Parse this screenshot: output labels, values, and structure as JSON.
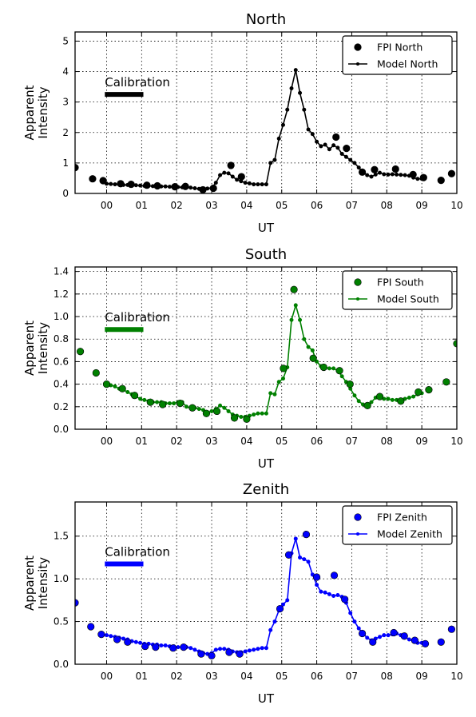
{
  "chart_data": [
    {
      "type": "line",
      "title": "North",
      "xlabel": "UT",
      "ylabel": [
        "Apparent",
        "Intensity"
      ],
      "xlim": [
        -0.9,
        10
      ],
      "ylim": [
        0,
        5.3
      ],
      "xticks": [
        0,
        1,
        2,
        3,
        4,
        5,
        6,
        7,
        8,
        9,
        10
      ],
      "xtick_labels": [
        "00",
        "01",
        "02",
        "03",
        "04",
        "05",
        "06",
        "07",
        "08",
        "09",
        "10"
      ],
      "yticks": [
        0,
        1,
        2,
        3,
        4,
        5
      ],
      "ytick_labels": [
        "0",
        "1",
        "2",
        "3",
        "4",
        "5"
      ],
      "grid": true,
      "legend_position": "top-right",
      "color": "#000000",
      "annotation": {
        "text": "Calibration",
        "x0": -0.05,
        "x1": 1.05,
        "y": 3.25
      },
      "series": [
        {
          "name": "FPI North",
          "style": "markers",
          "x": [
            -0.9,
            -0.4,
            -0.1,
            0.4,
            0.7,
            1.15,
            1.45,
            1.95,
            2.25,
            2.75,
            3.05,
            3.55,
            3.85,
            6.55,
            6.85,
            7.3,
            7.65,
            8.25,
            8.75,
            9.05,
            9.55,
            9.85
          ],
          "y": [
            0.85,
            0.48,
            0.42,
            0.32,
            0.3,
            0.27,
            0.25,
            0.22,
            0.23,
            0.12,
            0.17,
            0.92,
            0.55,
            1.85,
            1.48,
            0.7,
            0.78,
            0.8,
            0.62,
            0.52,
            0.43,
            0.65
          ]
        },
        {
          "name": "Model North",
          "style": "line-markers",
          "x": [
            0.0,
            0.12,
            0.24,
            0.36,
            0.48,
            0.6,
            0.72,
            0.84,
            0.96,
            1.08,
            1.2,
            1.32,
            1.44,
            1.56,
            1.68,
            1.8,
            1.92,
            2.04,
            2.16,
            2.28,
            2.4,
            2.52,
            2.64,
            2.76,
            2.88,
            3.0,
            3.12,
            3.24,
            3.36,
            3.48,
            3.6,
            3.72,
            3.84,
            3.96,
            4.08,
            4.2,
            4.32,
            4.44,
            4.56,
            4.68,
            4.8,
            4.92,
            5.04,
            5.16,
            5.28,
            5.4,
            5.52,
            5.64,
            5.76,
            5.88,
            6.0,
            6.12,
            6.24,
            6.36,
            6.48,
            6.6,
            6.72,
            6.84,
            6.96,
            7.08,
            7.2,
            7.32,
            7.44,
            7.56,
            7.68,
            7.8,
            7.92,
            8.04,
            8.16,
            8.28,
            8.4,
            8.52,
            8.64,
            8.76,
            8.88,
            9.0
          ],
          "y": [
            0.32,
            0.31,
            0.3,
            0.29,
            0.28,
            0.28,
            0.27,
            0.27,
            0.26,
            0.25,
            0.25,
            0.24,
            0.24,
            0.23,
            0.23,
            0.22,
            0.22,
            0.21,
            0.2,
            0.2,
            0.19,
            0.17,
            0.15,
            0.14,
            0.16,
            0.18,
            0.35,
            0.6,
            0.68,
            0.66,
            0.55,
            0.45,
            0.4,
            0.35,
            0.33,
            0.3,
            0.3,
            0.3,
            0.3,
            1.0,
            1.1,
            1.8,
            2.25,
            2.75,
            3.45,
            4.05,
            3.3,
            2.75,
            2.1,
            1.95,
            1.7,
            1.55,
            1.6,
            1.45,
            1.58,
            1.5,
            1.3,
            1.2,
            1.1,
            1.0,
            0.85,
            0.7,
            0.6,
            0.55,
            0.62,
            0.68,
            0.63,
            0.62,
            0.63,
            0.62,
            0.61,
            0.6,
            0.58,
            0.52,
            0.48,
            0.48
          ]
        }
      ]
    },
    {
      "type": "line",
      "title": "South",
      "xlabel": "UT",
      "ylabel": [
        "Apparent",
        "Intensity"
      ],
      "xlim": [
        -0.9,
        10
      ],
      "ylim": [
        0,
        1.44
      ],
      "xticks": [
        0,
        1,
        2,
        3,
        4,
        5,
        6,
        7,
        8,
        9,
        10
      ],
      "xtick_labels": [
        "00",
        "01",
        "02",
        "03",
        "04",
        "05",
        "06",
        "07",
        "08",
        "09",
        "10"
      ],
      "yticks": [
        0,
        0.2,
        0.4,
        0.6,
        0.8,
        1.0,
        1.2,
        1.4
      ],
      "ytick_labels": [
        "0.0",
        "0.2",
        "0.4",
        "0.6",
        "0.8",
        "1.0",
        "1.2",
        "1.4"
      ],
      "grid": true,
      "legend_position": "top-right",
      "color": "#008000",
      "annotation": {
        "text": "Calibration",
        "x0": -0.05,
        "x1": 1.05,
        "y": 0.885
      },
      "series": [
        {
          "name": "FPI South",
          "style": "markers",
          "x": [
            -0.75,
            -0.3,
            0.0,
            0.45,
            0.8,
            1.25,
            1.6,
            2.1,
            2.45,
            2.85,
            3.15,
            3.65,
            4.0,
            5.05,
            5.35,
            5.9,
            6.2,
            6.65,
            6.95,
            7.45,
            7.8,
            8.4,
            8.9,
            9.2,
            9.7,
            10.0
          ],
          "y": [
            0.69,
            0.5,
            0.4,
            0.36,
            0.3,
            0.24,
            0.22,
            0.23,
            0.19,
            0.14,
            0.16,
            0.1,
            0.09,
            0.54,
            1.24,
            0.63,
            0.55,
            0.52,
            0.4,
            0.21,
            0.29,
            0.25,
            0.33,
            0.35,
            0.42,
            0.76
          ]
        },
        {
          "name": "Model South",
          "style": "line-markers",
          "x": [
            0.0,
            0.12,
            0.24,
            0.36,
            0.48,
            0.6,
            0.72,
            0.84,
            0.96,
            1.08,
            1.2,
            1.32,
            1.44,
            1.56,
            1.68,
            1.8,
            1.92,
            2.04,
            2.16,
            2.28,
            2.4,
            2.52,
            2.64,
            2.76,
            2.88,
            3.0,
            3.12,
            3.24,
            3.36,
            3.48,
            3.6,
            3.72,
            3.84,
            3.96,
            4.08,
            4.2,
            4.32,
            4.44,
            4.56,
            4.68,
            4.8,
            4.92,
            5.04,
            5.16,
            5.28,
            5.4,
            5.52,
            5.64,
            5.76,
            5.88,
            6.0,
            6.12,
            6.24,
            6.36,
            6.48,
            6.6,
            6.72,
            6.84,
            6.96,
            7.08,
            7.2,
            7.32,
            7.44,
            7.56,
            7.68,
            7.8,
            7.92,
            8.04,
            8.16,
            8.28,
            8.4,
            8.52,
            8.64,
            8.76,
            8.88,
            9.0
          ],
          "y": [
            0.41,
            0.39,
            0.38,
            0.36,
            0.35,
            0.33,
            0.31,
            0.29,
            0.27,
            0.26,
            0.25,
            0.24,
            0.24,
            0.24,
            0.23,
            0.23,
            0.23,
            0.24,
            0.24,
            0.2,
            0.19,
            0.19,
            0.18,
            0.17,
            0.15,
            0.16,
            0.18,
            0.21,
            0.19,
            0.16,
            0.13,
            0.12,
            0.11,
            0.11,
            0.12,
            0.13,
            0.14,
            0.14,
            0.14,
            0.32,
            0.31,
            0.42,
            0.45,
            0.55,
            0.97,
            1.1,
            0.97,
            0.8,
            0.73,
            0.7,
            0.6,
            0.56,
            0.55,
            0.54,
            0.54,
            0.52,
            0.47,
            0.42,
            0.36,
            0.3,
            0.25,
            0.22,
            0.2,
            0.24,
            0.28,
            0.28,
            0.27,
            0.27,
            0.26,
            0.26,
            0.26,
            0.27,
            0.28,
            0.29,
            0.31,
            0.32
          ]
        }
      ]
    },
    {
      "type": "line",
      "title": "Zenith",
      "xlabel": "UT",
      "ylabel": [
        "Apparent",
        "Intensity"
      ],
      "xlim": [
        -0.9,
        10
      ],
      "ylim": [
        0,
        1.9
      ],
      "xticks": [
        0,
        1,
        2,
        3,
        4,
        5,
        6,
        7,
        8,
        9,
        10
      ],
      "xtick_labels": [
        "00",
        "01",
        "02",
        "03",
        "04",
        "05",
        "06",
        "07",
        "08",
        "09",
        "10"
      ],
      "yticks": [
        0,
        0.5,
        1.0,
        1.5
      ],
      "ytick_labels": [
        "0.0",
        "0.5",
        "1.0",
        "1.5"
      ],
      "grid": true,
      "legend_position": "top-right",
      "color": "#0000ff",
      "annotation": {
        "text": "Calibration",
        "x0": -0.05,
        "x1": 1.05,
        "y": 1.175
      },
      "series": [
        {
          "name": "FPI Zenith",
          "style": "markers",
          "x": [
            -0.9,
            -0.45,
            -0.15,
            0.3,
            0.6,
            1.1,
            1.4,
            1.9,
            2.2,
            2.7,
            3.0,
            3.5,
            3.8,
            4.95,
            5.2,
            5.7,
            6.0,
            6.5,
            6.8,
            7.3,
            7.6,
            8.2,
            8.5,
            8.8,
            9.1,
            9.55,
            9.85
          ],
          "y": [
            0.72,
            0.44,
            0.35,
            0.29,
            0.26,
            0.21,
            0.2,
            0.19,
            0.2,
            0.12,
            0.1,
            0.14,
            0.12,
            0.65,
            1.28,
            1.52,
            1.02,
            1.04,
            0.76,
            0.36,
            0.26,
            0.37,
            0.33,
            0.28,
            0.24,
            0.26,
            0.41
          ]
        },
        {
          "name": "Model Zenith",
          "style": "line-markers",
          "x": [
            0.0,
            0.12,
            0.24,
            0.36,
            0.48,
            0.6,
            0.72,
            0.84,
            0.96,
            1.08,
            1.2,
            1.32,
            1.44,
            1.56,
            1.68,
            1.8,
            1.92,
            2.04,
            2.16,
            2.28,
            2.4,
            2.52,
            2.64,
            2.76,
            2.88,
            3.0,
            3.12,
            3.24,
            3.36,
            3.48,
            3.6,
            3.72,
            3.84,
            3.96,
            4.08,
            4.2,
            4.32,
            4.44,
            4.56,
            4.68,
            4.8,
            4.92,
            5.04,
            5.16,
            5.28,
            5.4,
            5.52,
            5.64,
            5.76,
            5.88,
            6.0,
            6.12,
            6.24,
            6.36,
            6.48,
            6.6,
            6.72,
            6.84,
            6.96,
            7.08,
            7.2,
            7.32,
            7.44,
            7.56,
            7.68,
            7.8,
            7.92,
            8.04,
            8.16,
            8.28,
            8.4,
            8.52,
            8.64,
            8.76,
            8.88,
            9.0
          ],
          "y": [
            0.34,
            0.33,
            0.32,
            0.31,
            0.3,
            0.29,
            0.27,
            0.26,
            0.25,
            0.24,
            0.24,
            0.23,
            0.23,
            0.22,
            0.22,
            0.21,
            0.21,
            0.2,
            0.2,
            0.2,
            0.19,
            0.17,
            0.15,
            0.13,
            0.12,
            0.13,
            0.17,
            0.18,
            0.18,
            0.17,
            0.15,
            0.14,
            0.14,
            0.15,
            0.16,
            0.17,
            0.18,
            0.19,
            0.19,
            0.4,
            0.5,
            0.63,
            0.7,
            0.75,
            1.3,
            1.47,
            1.25,
            1.23,
            1.2,
            1.05,
            0.93,
            0.85,
            0.84,
            0.82,
            0.8,
            0.81,
            0.79,
            0.72,
            0.6,
            0.5,
            0.42,
            0.36,
            0.31,
            0.28,
            0.3,
            0.32,
            0.34,
            0.34,
            0.35,
            0.36,
            0.34,
            0.32,
            0.29,
            0.27,
            0.25,
            0.25
          ]
        }
      ]
    }
  ]
}
